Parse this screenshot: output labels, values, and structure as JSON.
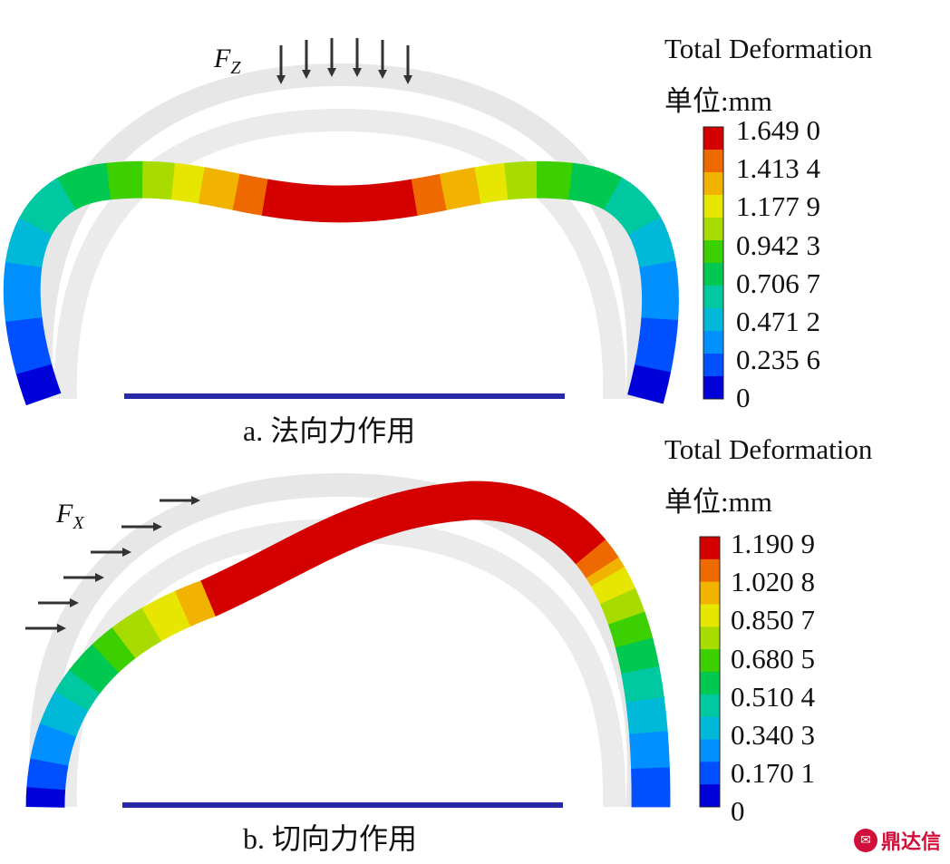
{
  "panel_a": {
    "force_symbol": "F",
    "force_subscript": "Z",
    "legend_title": "Total Deformation",
    "legend_unit": "单位:mm",
    "legend_ticks": [
      "1.649 0",
      "1.413 4",
      "1.177 9",
      "0.942 3",
      "0.706 7",
      "0.471 2",
      "0.235 6",
      "0"
    ],
    "caption": "a.  法向力作用"
  },
  "panel_b": {
    "force_symbol": "F",
    "force_subscript": "X",
    "legend_title": "Total Deformation",
    "legend_unit": "单位:mm",
    "legend_ticks": [
      "1.190 9",
      "1.020 8",
      "0.850 7",
      "0.680 5",
      "0.510 4",
      "0.340 3",
      "0.170 1",
      "0"
    ],
    "caption": "b.  切向力作用"
  },
  "colormap": [
    "#d40000",
    "#ee6a00",
    "#f2b200",
    "#e6e600",
    "#a8dc00",
    "#3cd000",
    "#00c850",
    "#00c8a0",
    "#00b8d8",
    "#0090ff",
    "#0050ff",
    "#0000d8"
  ],
  "undeformed_color": "#e4e4e4",
  "ground_color": "#2a2aa8",
  "watermark": "鼎达信"
}
